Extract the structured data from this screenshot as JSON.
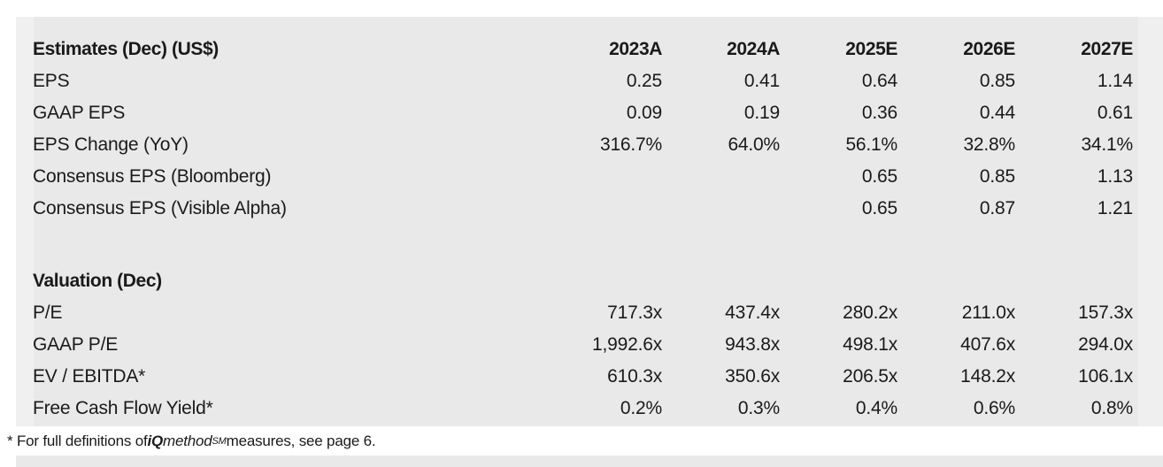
{
  "theme": {
    "page_bg": "#ffffff",
    "panel_bg": "#e9e9e9",
    "gutter_bg": "#f0f0f0",
    "text_color": "#1a1a1a"
  },
  "estimates": {
    "title": "Estimates (Dec) (US$)",
    "years": [
      "2023A",
      "2024A",
      "2025E",
      "2026E",
      "2027E"
    ],
    "rows": [
      {
        "label": "EPS",
        "values": [
          "0.25",
          "0.41",
          "0.64",
          "0.85",
          "1.14"
        ]
      },
      {
        "label": "GAAP EPS",
        "values": [
          "0.09",
          "0.19",
          "0.36",
          "0.44",
          "0.61"
        ]
      },
      {
        "label": "EPS Change (YoY)",
        "values": [
          "316.7%",
          "64.0%",
          "56.1%",
          "32.8%",
          "34.1%"
        ]
      },
      {
        "label": "Consensus EPS (Bloomberg)",
        "values": [
          "",
          "",
          "0.65",
          "0.85",
          "1.13"
        ]
      },
      {
        "label": "Consensus EPS (Visible Alpha)",
        "values": [
          "",
          "",
          "0.65",
          "0.87",
          "1.21"
        ]
      }
    ]
  },
  "valuation": {
    "title": "Valuation (Dec)",
    "rows": [
      {
        "label": "P/E",
        "values": [
          "717.3x",
          "437.4x",
          "280.2x",
          "211.0x",
          "157.3x"
        ]
      },
      {
        "label": "GAAP P/E",
        "values": [
          "1,992.6x",
          "943.8x",
          "498.1x",
          "407.6x",
          "294.0x"
        ]
      },
      {
        "label": "EV / EBITDA*",
        "values": [
          "610.3x",
          "350.6x",
          "206.5x",
          "148.2x",
          "106.1x"
        ]
      },
      {
        "label": "Free Cash Flow Yield*",
        "values": [
          "0.2%",
          "0.3%",
          "0.4%",
          "0.6%",
          "0.8%"
        ]
      }
    ]
  },
  "footnote": {
    "prefix": "* For full definitions of ",
    "iq": "iQ",
    "method": "method",
    "sm": "SM",
    "suffix": " measures, see page 6."
  }
}
